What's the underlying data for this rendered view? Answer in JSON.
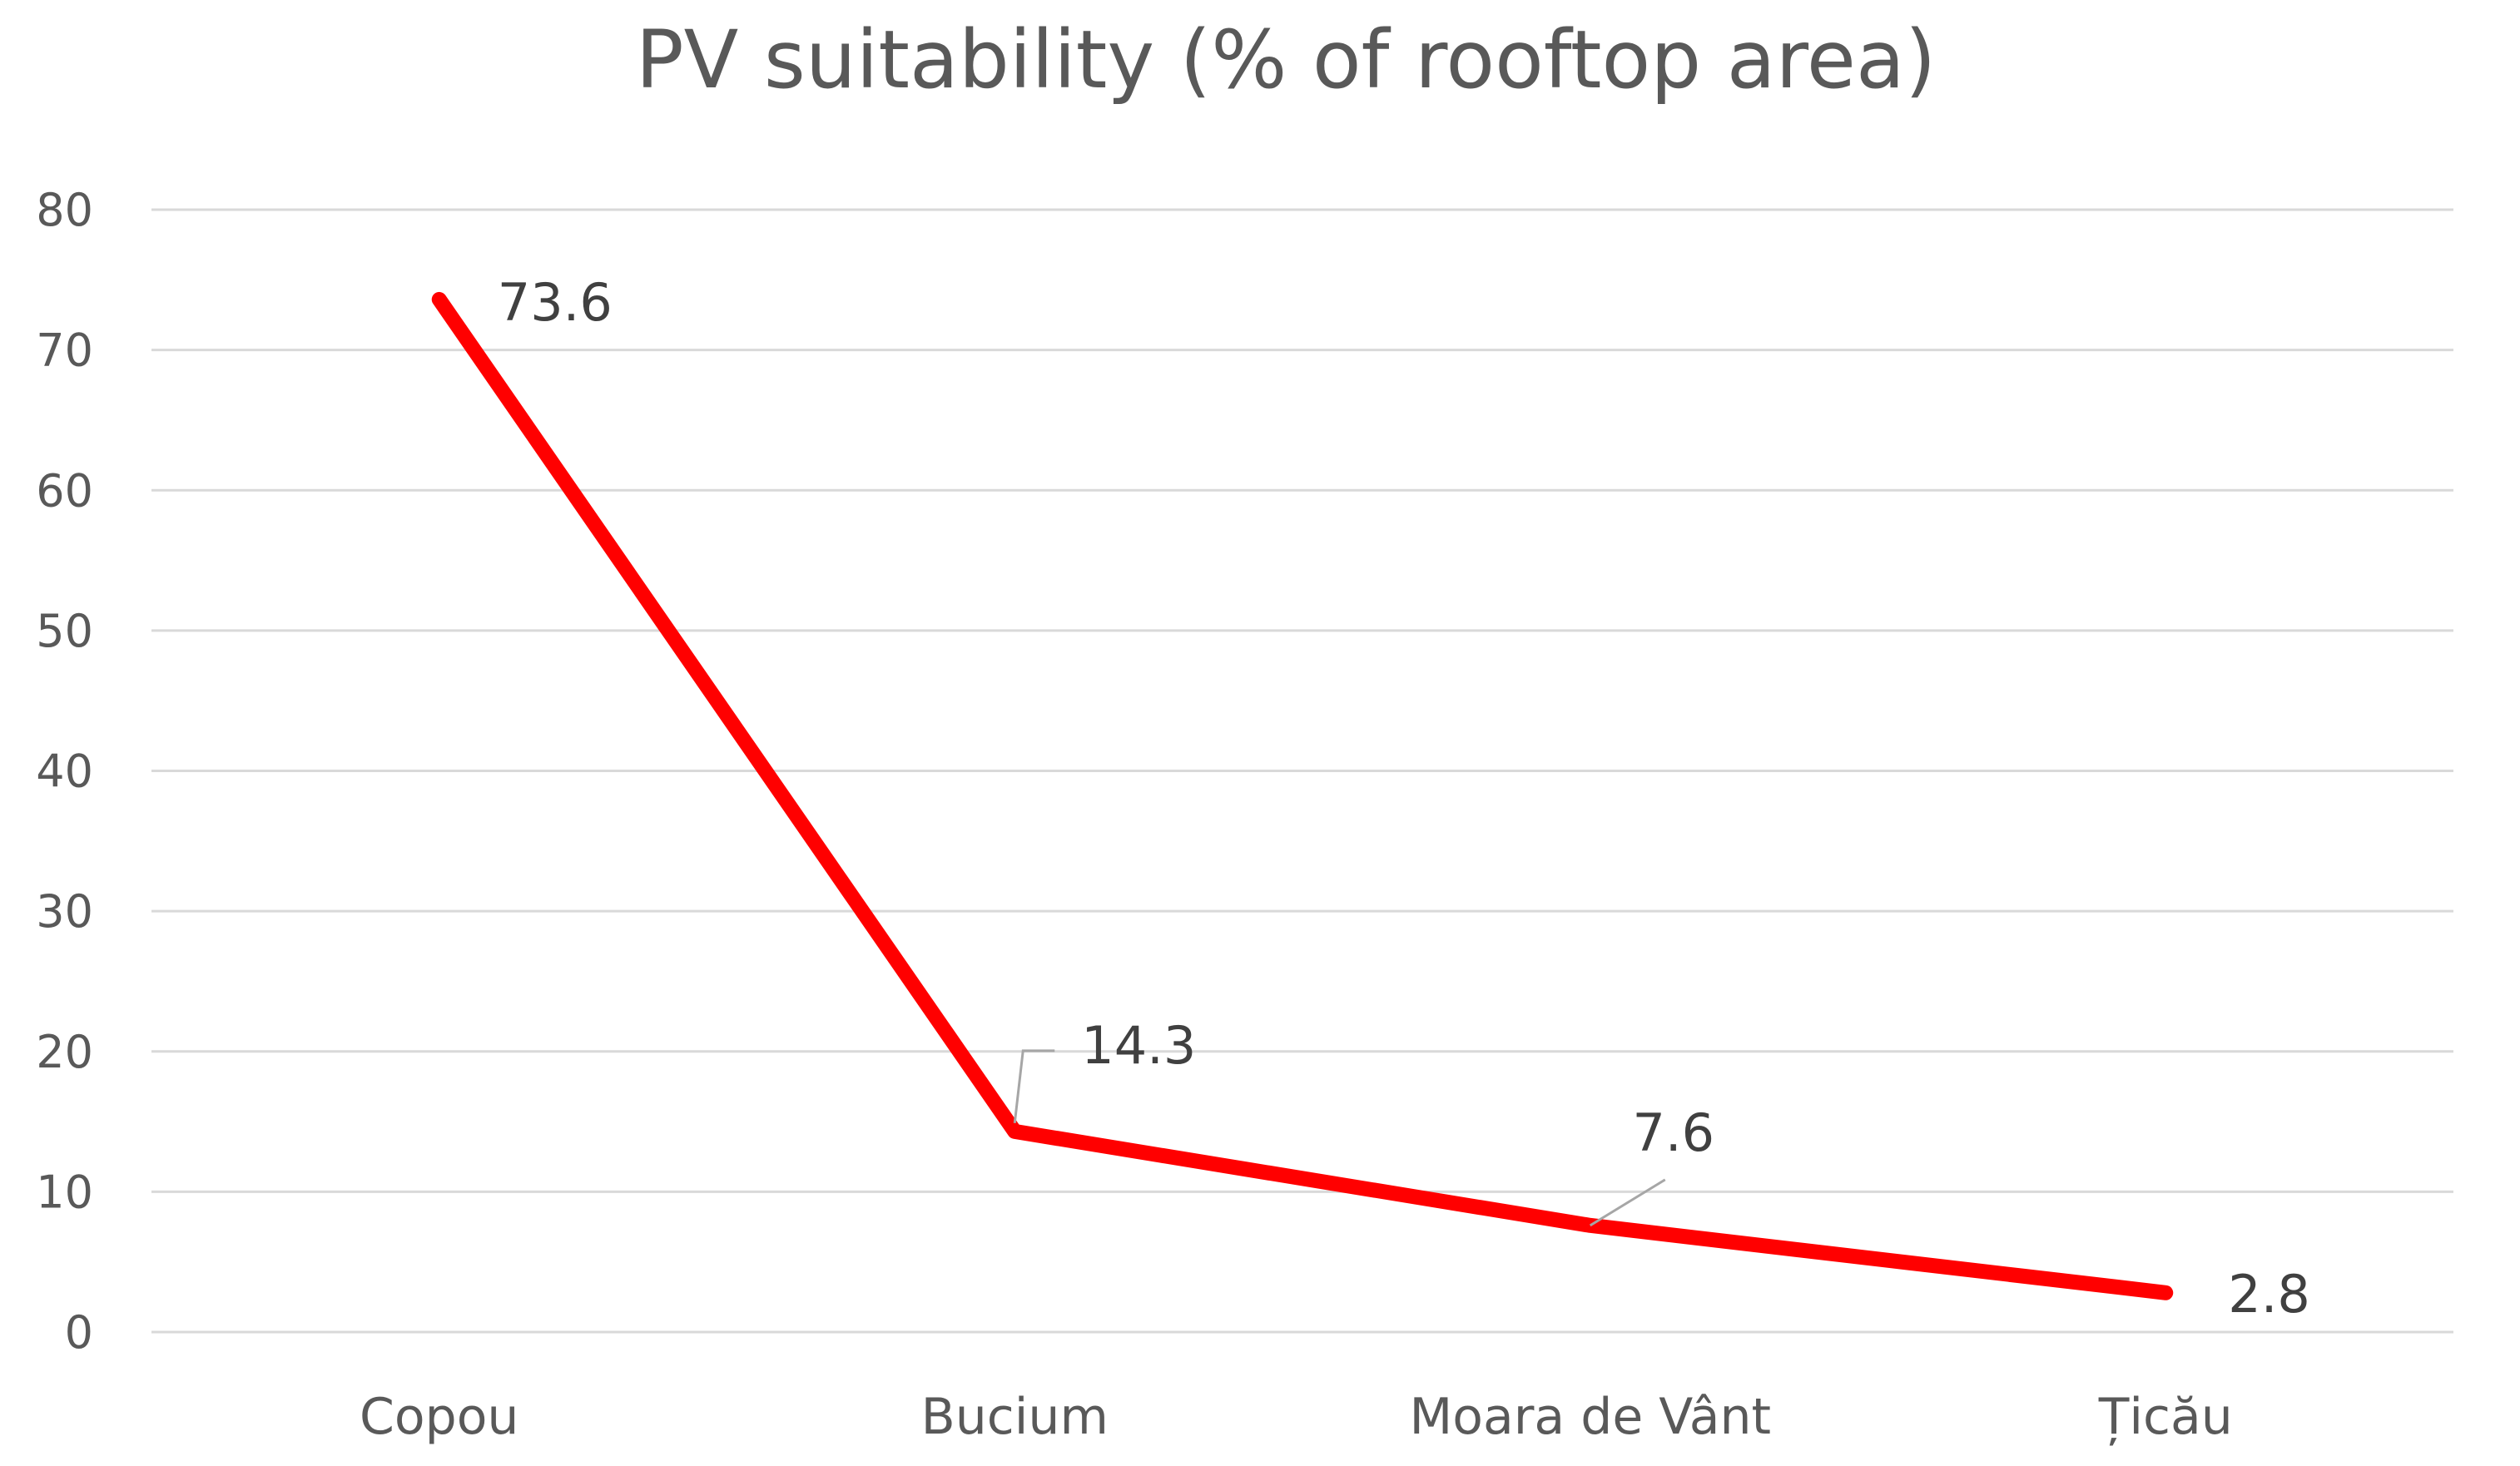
{
  "chart_data": {
    "type": "line",
    "title": "PV suitability (% of rooftop area)",
    "categories": [
      "Copou",
      "Bucium",
      "Moara de Vânt",
      "Țicău"
    ],
    "series": [
      {
        "name": "PV suitability",
        "values": [
          73.6,
          14.3,
          7.6,
          2.8
        ],
        "color": "#ff0000"
      }
    ],
    "data_labels": [
      "73.6",
      "14.3",
      "7.6",
      "2.8"
    ],
    "ylim": [
      0,
      80
    ],
    "yticks": [
      "0",
      "10",
      "20",
      "30",
      "40",
      "50",
      "60",
      "70",
      "80"
    ],
    "xlabel": "",
    "ylabel": "",
    "grid": true,
    "legend": "none"
  }
}
